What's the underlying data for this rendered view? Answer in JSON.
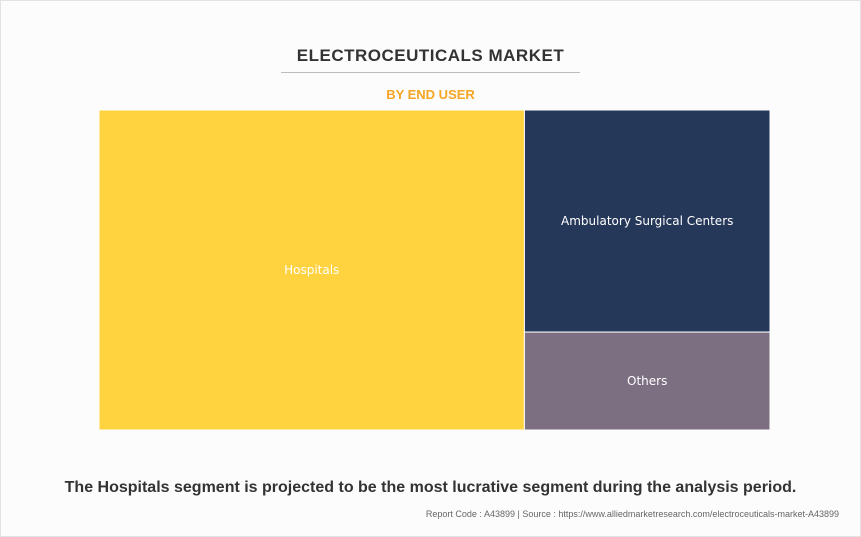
{
  "header": {
    "title": "ELECTROCEUTICALS MARKET",
    "subtitle": "BY END USER"
  },
  "chart_data": {
    "type": "treemap",
    "title": "ELECTROCEUTICALS MARKET",
    "subtitle": "BY END USER",
    "segments": [
      {
        "name": "Hospitals",
        "value": 63.4,
        "color": "#ffd23f"
      },
      {
        "name": "Ambulatory Surgical Centers",
        "value": 25.4,
        "color": "#263859"
      },
      {
        "name": "Others",
        "value": 11.2,
        "color": "#7c6f82"
      }
    ],
    "colors": {
      "accent": "#f5a623",
      "label": "#ffffff",
      "divider": "#ffffff"
    }
  },
  "caption": "The Hospitals segment is projected to be the most lucrative segment during the analysis period.",
  "footer": {
    "report_code": "Report Code : A43899",
    "separator": "|",
    "source": "Source : https://www.alliedmarketresearch.com/electroceuticals-market-A43899"
  }
}
